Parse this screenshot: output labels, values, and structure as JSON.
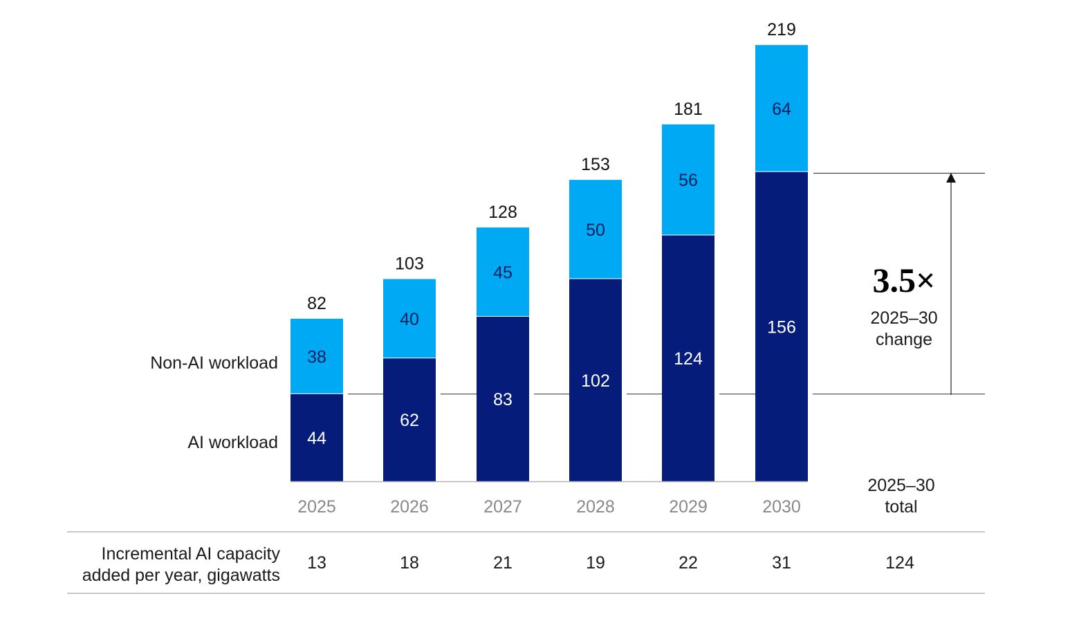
{
  "chart_data": {
    "type": "bar",
    "stacked": true,
    "categories": [
      "2025",
      "2026",
      "2027",
      "2028",
      "2029",
      "2030"
    ],
    "series": [
      {
        "name": "AI workload",
        "values": [
          44,
          62,
          83,
          102,
          124,
          156
        ],
        "color": "#051c7a"
      },
      {
        "name": "Non-AI workload",
        "values": [
          38,
          40,
          45,
          50,
          56,
          64
        ],
        "color": "#00a9f4"
      }
    ],
    "totals": [
      "82",
      "103",
      "128",
      "153",
      "181",
      "219"
    ],
    "ylim": [
      0,
      219
    ],
    "grid": false,
    "legend": "left",
    "annotation": {
      "multiplier": "3.5×",
      "line1": "2025–30",
      "line2": "change"
    }
  },
  "table": {
    "row_label_line1": "Incremental AI capacity",
    "row_label_line2": "added per year, gigawatts",
    "values": [
      "13",
      "18",
      "21",
      "19",
      "22",
      "31"
    ],
    "total_header_line1": "2025–30",
    "total_header_line2": "total",
    "total_value": "124"
  },
  "colors": {
    "ai": "#051c7a",
    "non_ai": "#00a9f4",
    "axis_label": "#888888",
    "rule": "#b5b5b5",
    "line": "#444444"
  }
}
